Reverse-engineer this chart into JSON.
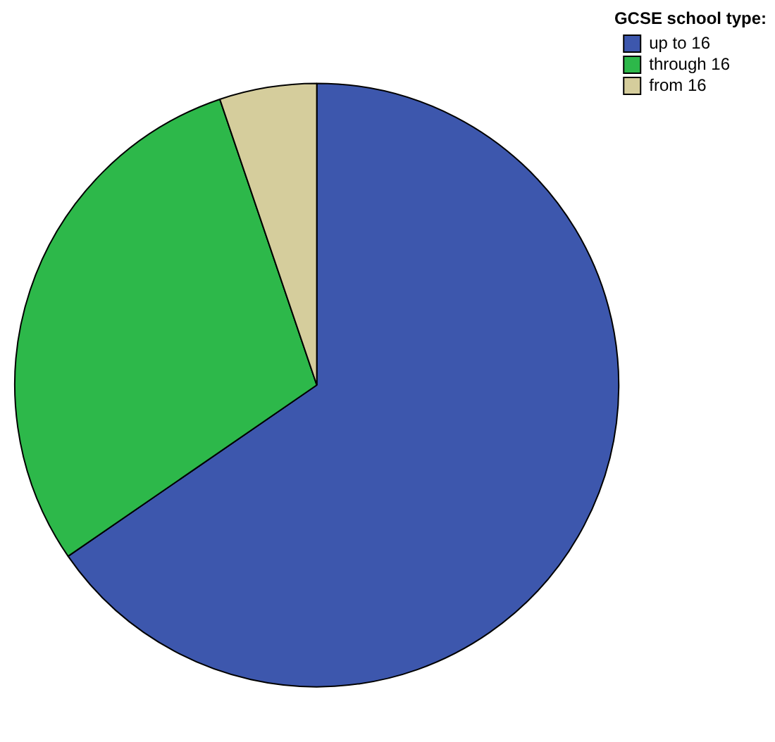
{
  "chart_data": {
    "type": "pie",
    "legend_title": "GCSE school type:",
    "legend": "top right",
    "categories": [
      "up to 16",
      "through 16",
      "from 16"
    ],
    "values": [
      65.4,
      29.4,
      5.2
    ],
    "colors": [
      "#3d57ad",
      "#2db84a",
      "#d5cd9c"
    ]
  }
}
